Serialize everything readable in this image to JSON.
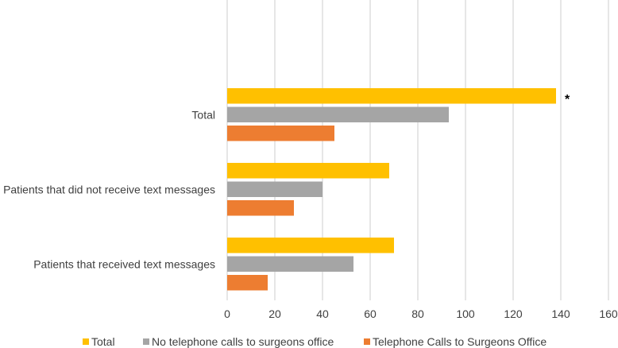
{
  "chart_data": {
    "type": "bar",
    "orientation": "horizontal",
    "categories": [
      "Total",
      "Patients that did not receive text messages",
      "Patients that received text messages"
    ],
    "series": [
      {
        "name": "Total",
        "values": [
          138,
          68,
          70
        ],
        "color": "#FFC000"
      },
      {
        "name": "No telephone calls to surgeons office",
        "values": [
          93,
          40,
          53
        ],
        "color": "#A5A5A5"
      },
      {
        "name": "Telephone Calls to Surgeons Office",
        "values": [
          45,
          28,
          17
        ],
        "color": "#ED7D31"
      }
    ],
    "xlim": [
      0,
      160
    ],
    "x_ticks": [
      0,
      20,
      40,
      60,
      80,
      100,
      120,
      140,
      160
    ],
    "grid": true,
    "legend_position": "bottom",
    "annotations": [
      {
        "text": "*",
        "category": "Total",
        "series": "Total"
      }
    ]
  }
}
